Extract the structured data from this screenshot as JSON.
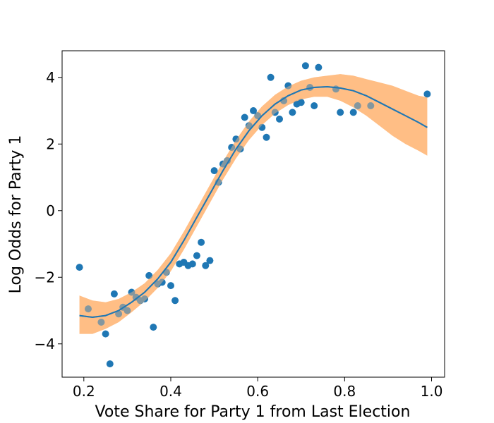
{
  "chart_data": {
    "type": "scatter",
    "title": "",
    "xlabel": "Vote Share for Party 1 from Last Election",
    "ylabel": "Log Odds for Party 1",
    "xlim": [
      0.15,
      1.03
    ],
    "ylim": [
      -5.0,
      4.8
    ],
    "xticks": [
      0.2,
      0.4,
      0.6,
      0.8,
      1.0
    ],
    "xtick_labels": [
      "0.2",
      "0.4",
      "0.6",
      "0.8",
      "1.0"
    ],
    "yticks": [
      -4,
      -2,
      0,
      2,
      4
    ],
    "ytick_labels": [
      "−4",
      "−2",
      "0",
      "2",
      "4"
    ],
    "grid": false,
    "legend": "none",
    "colors": {
      "points": "#1f77b4",
      "line": "#1f77b4",
      "band": "#ffbe86"
    },
    "series": [
      {
        "kind": "points",
        "x": [
          0.19,
          0.21,
          0.24,
          0.25,
          0.26,
          0.27,
          0.28,
          0.29,
          0.3,
          0.31,
          0.32,
          0.33,
          0.34,
          0.35,
          0.36,
          0.37,
          0.38,
          0.39,
          0.4,
          0.41,
          0.42,
          0.43,
          0.44,
          0.45,
          0.46,
          0.47,
          0.48,
          0.49,
          0.5,
          0.51,
          0.52,
          0.53,
          0.54,
          0.55,
          0.56,
          0.57,
          0.58,
          0.59,
          0.6,
          0.61,
          0.62,
          0.63,
          0.64,
          0.65,
          0.66,
          0.67,
          0.68,
          0.69,
          0.7,
          0.71,
          0.72,
          0.73,
          0.74,
          0.78,
          0.79,
          0.82,
          0.83,
          0.86,
          0.99
        ],
        "y": [
          -1.7,
          -2.95,
          -3.35,
          -3.7,
          -4.6,
          -2.5,
          -3.1,
          -2.9,
          -3.0,
          -2.45,
          -2.6,
          -2.7,
          -2.65,
          -1.95,
          -3.5,
          -2.2,
          -2.15,
          -1.85,
          -2.25,
          -2.7,
          -1.6,
          -1.55,
          -1.65,
          -1.6,
          -1.35,
          -0.95,
          -1.65,
          -1.5,
          1.2,
          0.85,
          1.4,
          1.5,
          1.9,
          2.15,
          1.85,
          2.8,
          2.55,
          3.0,
          2.85,
          2.5,
          2.2,
          4.0,
          2.95,
          2.75,
          3.3,
          3.75,
          2.95,
          3.2,
          3.25,
          4.35,
          3.7,
          3.15,
          4.3,
          3.65,
          2.95,
          2.95,
          3.15,
          3.15,
          3.5
        ]
      },
      {
        "kind": "fit",
        "x": [
          0.19,
          0.22,
          0.25,
          0.28,
          0.31,
          0.34,
          0.37,
          0.4,
          0.43,
          0.46,
          0.49,
          0.52,
          0.55,
          0.58,
          0.61,
          0.64,
          0.67,
          0.7,
          0.73,
          0.76,
          0.79,
          0.82,
          0.85,
          0.88,
          0.91,
          0.94,
          0.97,
          0.99
        ],
        "y": [
          -3.15,
          -3.2,
          -3.15,
          -3.0,
          -2.75,
          -2.45,
          -2.05,
          -1.55,
          -0.9,
          -0.2,
          0.5,
          1.2,
          1.85,
          2.4,
          2.85,
          3.2,
          3.45,
          3.62,
          3.7,
          3.72,
          3.68,
          3.6,
          3.45,
          3.25,
          3.05,
          2.85,
          2.65,
          2.5
        ],
        "lower": [
          -3.7,
          -3.7,
          -3.55,
          -3.35,
          -3.05,
          -2.72,
          -2.32,
          -1.82,
          -1.17,
          -0.47,
          0.23,
          0.93,
          1.57,
          2.12,
          2.57,
          2.92,
          3.17,
          3.34,
          3.42,
          3.42,
          3.3,
          3.1,
          2.85,
          2.55,
          2.25,
          2.0,
          1.8,
          1.65
        ],
        "upper": [
          -2.55,
          -2.7,
          -2.75,
          -2.65,
          -2.45,
          -2.18,
          -1.78,
          -1.28,
          -0.63,
          0.07,
          0.77,
          1.47,
          2.12,
          2.68,
          3.13,
          3.48,
          3.73,
          3.9,
          4.0,
          4.05,
          4.1,
          4.05,
          3.95,
          3.85,
          3.75,
          3.6,
          3.45,
          3.4
        ]
      }
    ]
  }
}
